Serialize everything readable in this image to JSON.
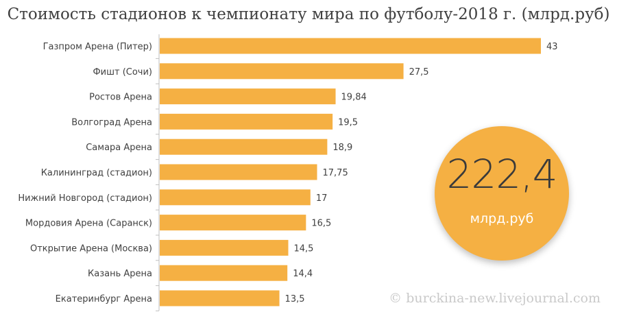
{
  "chart_data": {
    "type": "bar",
    "orientation": "horizontal",
    "title": "Стоимость стадионов к чемпионату мира по футболу-2018 г. (млрд.руб)",
    "categories": [
      "Газпром Арена (Питер)",
      "Фишт (Сочи)",
      "Ростов Арена",
      "Волгоград Арена",
      "Самара Арена",
      "Калининград (стадион)",
      "Нижний Новгород (стадион)",
      "Мордовия Арена (Саранск)",
      "Открытие Арена (Москва)",
      "Казань Арена",
      "Екатеринбург Арена"
    ],
    "values": [
      43,
      27.5,
      19.84,
      19.5,
      18.9,
      17.75,
      17,
      16.5,
      14.5,
      14.4,
      13.5
    ],
    "value_labels": [
      "43",
      "27,5",
      "19,84",
      "19,5",
      "18,9",
      "17,75",
      "17",
      "16,5",
      "14,5",
      "14,4",
      "13,5"
    ],
    "xlabel": "",
    "ylabel": "",
    "grid": false,
    "bar_color": "#f5b043"
  },
  "total": {
    "value": "222,4",
    "unit": "млрд.руб",
    "color": "#f5b043"
  },
  "watermark": "© burckina-new.livejournal.com"
}
